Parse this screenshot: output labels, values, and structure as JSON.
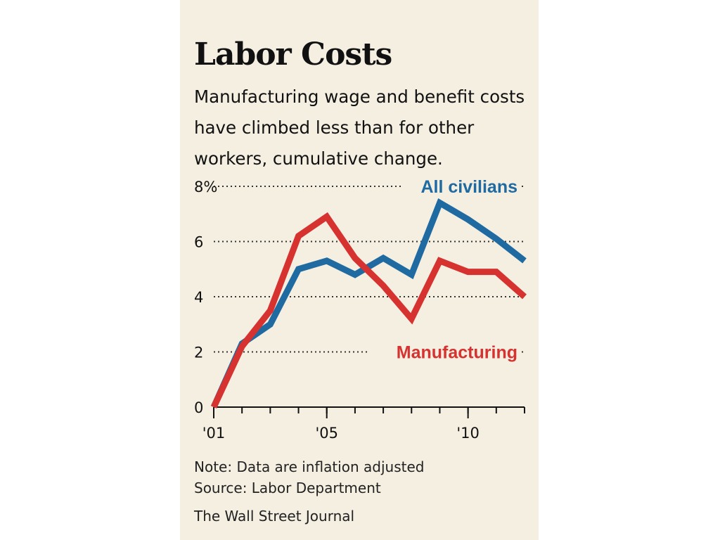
{
  "header": {
    "title": "Labor Costs",
    "subtitle": "Manufacturing wage and benefit costs have climbed less than for other workers, cumulative change."
  },
  "footer": {
    "note": "Note: Data are inflation adjusted",
    "source": "Source: Labor Department",
    "credit": "The Wall Street Journal"
  },
  "colors": {
    "all_civilians": "#1f6aa0",
    "manufacturing": "#d63230"
  },
  "chart_data": {
    "type": "line",
    "x": [
      2001,
      2002,
      2003,
      2004,
      2005,
      2006,
      2007,
      2008,
      2009,
      2010,
      2011,
      2012
    ],
    "ylim": [
      0,
      8
    ],
    "xlim": [
      2001,
      2012
    ],
    "yticks": [
      0,
      2,
      4,
      6,
      8
    ],
    "ytick_labels": [
      "0",
      "2",
      "4",
      "6",
      "8%"
    ],
    "xticks": [
      2001,
      2005,
      2010
    ],
    "xtick_labels": [
      "'01",
      "'05",
      "'10"
    ],
    "grid": "dotted horizontal",
    "series": [
      {
        "name": "All civilians",
        "values": [
          0,
          2.3,
          3.0,
          5.0,
          5.3,
          4.8,
          5.4,
          4.8,
          7.4,
          6.8,
          6.1,
          5.3
        ]
      },
      {
        "name": "Manufacturing",
        "values": [
          0,
          2.2,
          3.5,
          6.2,
          6.9,
          5.4,
          4.4,
          3.2,
          5.3,
          4.9,
          4.9,
          4.0
        ]
      }
    ]
  }
}
